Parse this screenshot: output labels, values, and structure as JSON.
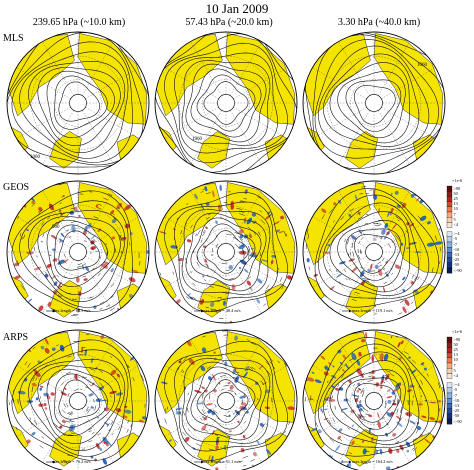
{
  "title": "10 Jan 2009",
  "columns": [
    "239.65 hPa (~10.0 km)",
    "57.43 hPa (~20.0 km)",
    "3.30 hPa (~40.0 km)"
  ],
  "rows": [
    "MLS",
    "GEOS",
    "ARPS"
  ],
  "contour_labels": {
    "mls_left": "1060",
    "mls_mid": "1960",
    "mls_right": "1060",
    "geos_left": "960"
  },
  "max_length": {
    "geos": [
      "max.length = 88.5 m/s",
      "max.length = 48.4 m/s",
      "max.length = 119.1 m/s"
    ],
    "arps": [
      "max.length = 76.2 m/s",
      "max.length = 51.1 m/s",
      "max.length = 164.2 m/s"
    ]
  },
  "colorbar": {
    "geos_exp": "×1e-6",
    "arps_exp": "×1e-6",
    "pos_ticks": [
      ">90",
      "50",
      "25",
      "13",
      "10",
      "7",
      "5",
      "<4"
    ],
    "neg_ticks": [
      ">-4",
      "-5",
      "-7",
      "-10",
      "-13",
      "-25",
      "-50",
      "<-90"
    ],
    "pos_colors": [
      "#5a0d0d",
      "#8b1a1a",
      "#b82020",
      "#d9442e",
      "#ec7a4d",
      "#f5a87a",
      "#f8cfaf",
      "#f9e4d3"
    ],
    "neg_colors": [
      "#dce8f6",
      "#b6cfec",
      "#88b0de",
      "#5b8fcc",
      "#3868b5",
      "#214a99",
      "#142f78",
      "#0a1a55"
    ]
  },
  "colors": {
    "land": "#f5e400",
    "ocean": "#ffffff",
    "positive": "#c62828",
    "negative": "#1e5bb8"
  }
}
